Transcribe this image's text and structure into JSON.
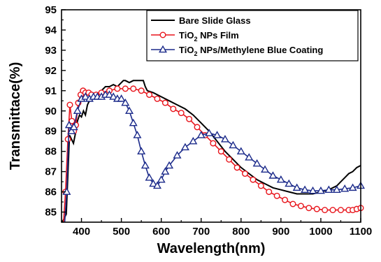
{
  "chart_data": {
    "type": "line",
    "xlabel": "Wavelength(nm)",
    "ylabel": "Transmittace(%)",
    "xlim": [
      350,
      1100
    ],
    "ylim": [
      84.5,
      95
    ],
    "x_ticks": [
      400,
      500,
      600,
      700,
      800,
      900,
      1000,
      1100
    ],
    "y_ticks": [
      85,
      86,
      87,
      88,
      89,
      90,
      91,
      92,
      93,
      94,
      95
    ],
    "grid": false,
    "legend_position": "top-right",
    "series": [
      {
        "name": "Bare Slide Glass",
        "legend_parts": [
          "Bare Slide Glass"
        ],
        "color": "#000000",
        "marker": "none",
        "points": [
          [
            352,
            84.5
          ],
          [
            362,
            84.9
          ],
          [
            370,
            88.8
          ],
          [
            375,
            88.6
          ],
          [
            380,
            88.4
          ],
          [
            385,
            88.9
          ],
          [
            390,
            89.5
          ],
          [
            395,
            89.8
          ],
          [
            400,
            89.7
          ],
          [
            405,
            90.0
          ],
          [
            410,
            89.8
          ],
          [
            415,
            90.3
          ],
          [
            420,
            90.5
          ],
          [
            425,
            90.5
          ],
          [
            430,
            90.7
          ],
          [
            440,
            90.8
          ],
          [
            450,
            91.0
          ],
          [
            460,
            91.2
          ],
          [
            470,
            91.2
          ],
          [
            480,
            91.3
          ],
          [
            490,
            91.2
          ],
          [
            500,
            91.4
          ],
          [
            505,
            91.5
          ],
          [
            510,
            91.5
          ],
          [
            520,
            91.4
          ],
          [
            530,
            91.5
          ],
          [
            540,
            91.5
          ],
          [
            550,
            91.5
          ],
          [
            555,
            91.5
          ],
          [
            560,
            91.2
          ],
          [
            565,
            91.0
          ],
          [
            580,
            90.9
          ],
          [
            600,
            90.7
          ],
          [
            620,
            90.5
          ],
          [
            640,
            90.3
          ],
          [
            660,
            90.1
          ],
          [
            680,
            89.8
          ],
          [
            700,
            89.4
          ],
          [
            720,
            89.0
          ],
          [
            740,
            88.5
          ],
          [
            760,
            88.0
          ],
          [
            780,
            87.6
          ],
          [
            800,
            87.2
          ],
          [
            820,
            86.9
          ],
          [
            840,
            86.6
          ],
          [
            860,
            86.4
          ],
          [
            880,
            86.2
          ],
          [
            900,
            86.1
          ],
          [
            920,
            86.0
          ],
          [
            940,
            85.9
          ],
          [
            960,
            85.9
          ],
          [
            980,
            85.9
          ],
          [
            1000,
            86.0
          ],
          [
            1020,
            86.1
          ],
          [
            1040,
            86.3
          ],
          [
            1050,
            86.5
          ],
          [
            1060,
            86.7
          ],
          [
            1070,
            86.9
          ],
          [
            1080,
            87.0
          ],
          [
            1090,
            87.2
          ],
          [
            1100,
            87.3
          ]
        ]
      },
      {
        "name": "TiO2 NPs Film",
        "legend_parts": [
          "TiO",
          "2",
          " NPs Film"
        ],
        "color": "#e8141b",
        "marker": "circle",
        "points": [
          [
            355,
            84.5
          ],
          [
            360,
            86.0
          ],
          [
            366,
            88.6
          ],
          [
            371,
            90.3
          ],
          [
            376,
            89.5
          ],
          [
            381,
            89.0
          ],
          [
            386,
            89.3
          ],
          [
            392,
            90.4
          ],
          [
            398,
            90.8
          ],
          [
            404,
            91.0
          ],
          [
            410,
            90.9
          ],
          [
            418,
            90.9
          ],
          [
            425,
            90.8
          ],
          [
            437,
            90.8
          ],
          [
            450,
            90.9
          ],
          [
            470,
            91.0
          ],
          [
            490,
            91.1
          ],
          [
            510,
            91.1
          ],
          [
            530,
            91.1
          ],
          [
            550,
            91.0
          ],
          [
            570,
            90.8
          ],
          [
            590,
            90.6
          ],
          [
            610,
            90.4
          ],
          [
            630,
            90.1
          ],
          [
            650,
            89.9
          ],
          [
            670,
            89.6
          ],
          [
            690,
            89.2
          ],
          [
            710,
            88.8
          ],
          [
            730,
            88.4
          ],
          [
            750,
            88.0
          ],
          [
            770,
            87.6
          ],
          [
            790,
            87.2
          ],
          [
            810,
            86.9
          ],
          [
            830,
            86.6
          ],
          [
            850,
            86.3
          ],
          [
            870,
            86.0
          ],
          [
            890,
            85.8
          ],
          [
            910,
            85.6
          ],
          [
            930,
            85.4
          ],
          [
            950,
            85.3
          ],
          [
            970,
            85.2
          ],
          [
            990,
            85.15
          ],
          [
            1010,
            85.1
          ],
          [
            1030,
            85.1
          ],
          [
            1050,
            85.1
          ],
          [
            1070,
            85.1
          ],
          [
            1080,
            85.1
          ],
          [
            1090,
            85.15
          ],
          [
            1100,
            85.2
          ]
        ]
      },
      {
        "name": "TiO2 NPs/Methylene Blue Coating",
        "legend_parts": [
          "TiO",
          "2",
          " NPs/Methylene Blue Coating"
        ],
        "color": "#1b2a8a",
        "marker": "triangle",
        "points": [
          [
            358,
            84.5
          ],
          [
            363,
            86.0
          ],
          [
            369,
            89.3
          ],
          [
            375,
            89.0
          ],
          [
            381,
            89.2
          ],
          [
            390,
            90.0
          ],
          [
            400,
            90.6
          ],
          [
            410,
            90.7
          ],
          [
            420,
            90.6
          ],
          [
            430,
            90.7
          ],
          [
            440,
            90.7
          ],
          [
            450,
            90.7
          ],
          [
            460,
            90.8
          ],
          [
            470,
            90.8
          ],
          [
            480,
            90.7
          ],
          [
            490,
            90.6
          ],
          [
            500,
            90.6
          ],
          [
            510,
            90.4
          ],
          [
            520,
            90.0
          ],
          [
            530,
            89.4
          ],
          [
            540,
            88.8
          ],
          [
            550,
            88.0
          ],
          [
            560,
            87.3
          ],
          [
            570,
            86.7
          ],
          [
            580,
            86.4
          ],
          [
            590,
            86.3
          ],
          [
            600,
            86.6
          ],
          [
            610,
            87.0
          ],
          [
            620,
            87.3
          ],
          [
            640,
            87.8
          ],
          [
            660,
            88.2
          ],
          [
            680,
            88.5
          ],
          [
            700,
            88.8
          ],
          [
            720,
            88.9
          ],
          [
            740,
            88.8
          ],
          [
            760,
            88.6
          ],
          [
            780,
            88.3
          ],
          [
            800,
            88.0
          ],
          [
            820,
            87.7
          ],
          [
            840,
            87.4
          ],
          [
            860,
            87.1
          ],
          [
            880,
            86.8
          ],
          [
            900,
            86.6
          ],
          [
            920,
            86.4
          ],
          [
            940,
            86.2
          ],
          [
            960,
            86.1
          ],
          [
            980,
            86.05
          ],
          [
            1000,
            86.05
          ],
          [
            1020,
            86.1
          ],
          [
            1040,
            86.1
          ],
          [
            1060,
            86.15
          ],
          [
            1080,
            86.2
          ],
          [
            1100,
            86.3
          ]
        ]
      }
    ]
  }
}
